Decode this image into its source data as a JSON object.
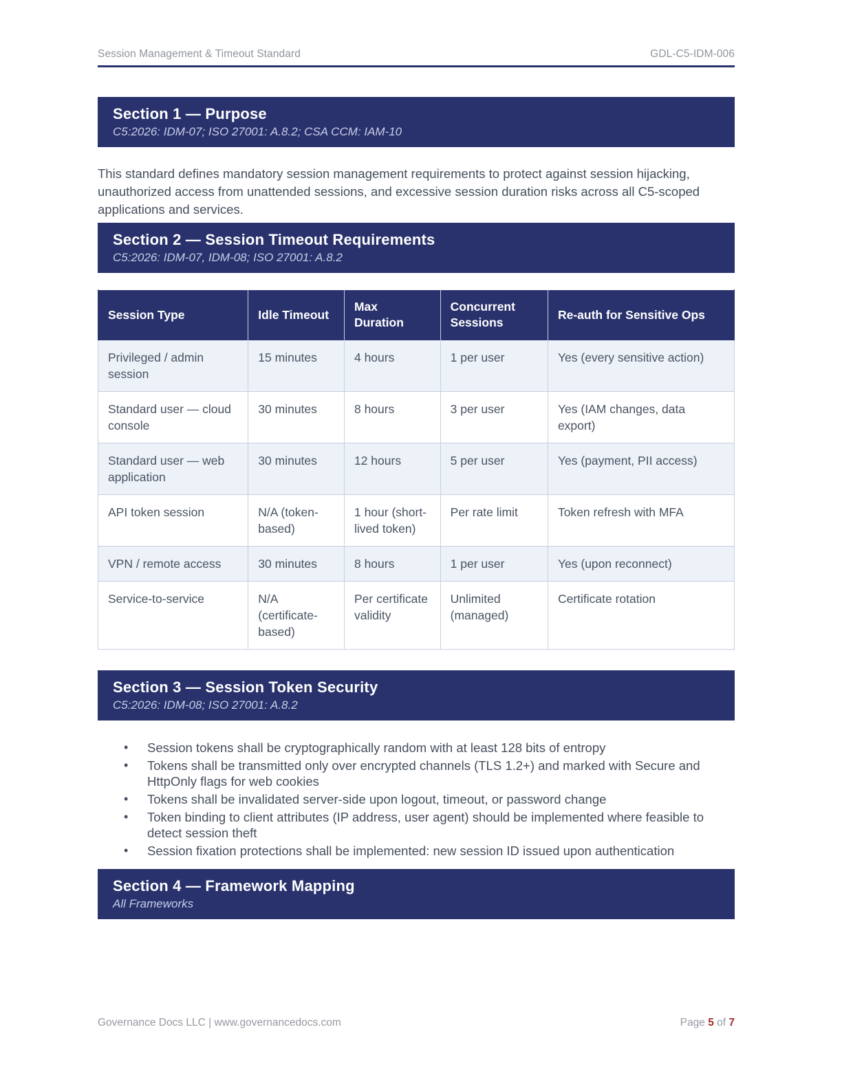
{
  "header": {
    "title": "Session Management & Timeout Standard",
    "doc_id": "GDL-C5-IDM-006"
  },
  "sections": [
    {
      "title": "Section 1 — Purpose",
      "subtitle": "C5:2026: IDM-07; ISO 27001: A.8.2; CSA CCM: IAM-10"
    },
    {
      "title": "Section 2 — Session Timeout Requirements",
      "subtitle": "C5:2026: IDM-07, IDM-08; ISO 27001: A.8.2"
    },
    {
      "title": "Section 3 — Session Token Security",
      "subtitle": "C5:2026: IDM-08; ISO 27001: A.8.2"
    },
    {
      "title": "Section 4 — Framework Mapping",
      "subtitle": "All Frameworks"
    }
  ],
  "purpose_paragraph": "This standard defines mandatory session management requirements to protect against session hijacking, unauthorized access from unattended sessions, and excessive session duration risks across all C5-scoped applications and services.",
  "timeout_table": {
    "columns": [
      "Session Type",
      "Idle Timeout",
      "Max Duration",
      "Concurrent Sessions",
      "Re-auth for Sensitive Ops"
    ],
    "rows": [
      [
        "Privileged / admin session",
        "15 minutes",
        "4 hours",
        "1 per user",
        "Yes (every sensitive action)"
      ],
      [
        "Standard user — cloud console",
        "30 minutes",
        "8 hours",
        "3 per user",
        "Yes (IAM changes, data export)"
      ],
      [
        "Standard user — web application",
        "30 minutes",
        "12 hours",
        "5 per user",
        "Yes (payment, PII access)"
      ],
      [
        "API token session",
        "N/A (token-based)",
        "1 hour (short-lived token)",
        "Per rate limit",
        "Token refresh with MFA"
      ],
      [
        "VPN / remote access",
        "30 minutes",
        "8 hours",
        "1 per user",
        "Yes (upon reconnect)"
      ],
      [
        "Service-to-service",
        "N/A (certificate-based)",
        "Per certificate validity",
        "Unlimited (managed)",
        "Certificate rotation"
      ]
    ]
  },
  "token_security_bullets": [
    "Session tokens shall be cryptographically random with at least 128 bits of entropy",
    "Tokens shall be transmitted only over encrypted channels (TLS 1.2+) and marked with Secure and HttpOnly flags for web cookies",
    "Tokens shall be invalidated server-side upon logout, timeout, or password change",
    "Token binding to client attributes (IP address, user agent) should be implemented where feasible to detect session theft",
    "Session fixation protections shall be implemented: new session ID issued upon authentication"
  ],
  "footer": {
    "company": "Governance Docs LLC | www.governancedocs.com",
    "page_word": "Page",
    "page_current": "5",
    "of_word": "of",
    "page_total": "7"
  },
  "colors": {
    "banner_navy": "#29326c",
    "accent_red": "#9f2b2b",
    "alt_row": "#edf1f8",
    "table_border": "#c9cfe0"
  }
}
